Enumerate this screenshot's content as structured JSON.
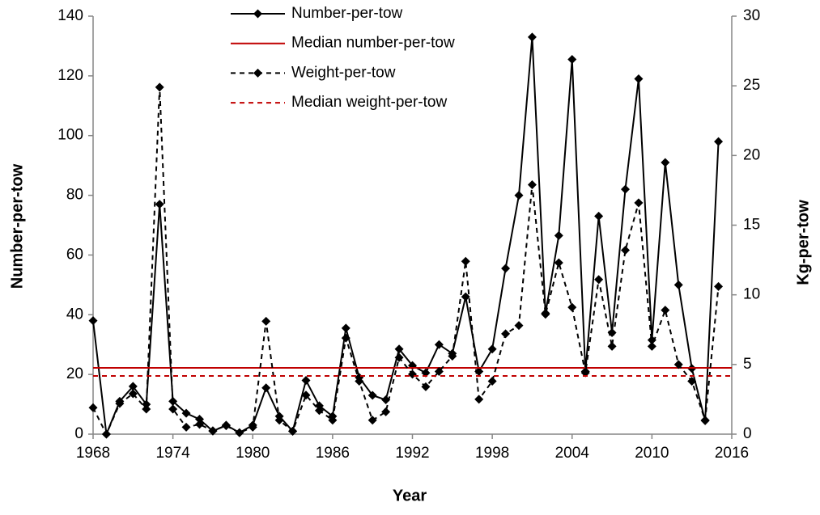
{
  "chart_data": {
    "type": "line",
    "x_label": "Year",
    "y_label": "Number-per-tow",
    "y2_label": "Kg-per-tow",
    "x": [
      1968,
      1969,
      1970,
      1971,
      1972,
      1973,
      1974,
      1975,
      1976,
      1977,
      1978,
      1979,
      1980,
      1981,
      1982,
      1983,
      1984,
      1985,
      1986,
      1987,
      1988,
      1989,
      1990,
      1991,
      1992,
      1993,
      1994,
      1995,
      1996,
      1997,
      1998,
      1999,
      2000,
      2001,
      2002,
      2003,
      2004,
      2005,
      2006,
      2007,
      2008,
      2009,
      2010,
      2011,
      2012,
      2013,
      2014,
      2015
    ],
    "xlim": [
      1968,
      2016
    ],
    "xticks": [
      1968,
      1974,
      1980,
      1986,
      1992,
      1998,
      2004,
      2010,
      2016
    ],
    "ylim": [
      0,
      140
    ],
    "yticks": [
      0,
      20,
      40,
      60,
      80,
      100,
      120,
      140
    ],
    "y2lim": [
      0,
      30
    ],
    "y2ticks": [
      0,
      5,
      10,
      15,
      20,
      25,
      30
    ],
    "series": [
      {
        "name": "Number-per-tow",
        "color": "#000000",
        "dashed": false,
        "marker": "diamond",
        "values": [
          38,
          0,
          11,
          16,
          10,
          77,
          11,
          7,
          5,
          1,
          3,
          0.5,
          3,
          15.5,
          6,
          1,
          18,
          9.5,
          6,
          35.5,
          19,
          13,
          11.5,
          28.5,
          23,
          20.5,
          30,
          27,
          46,
          21,
          28.5,
          55.5,
          80,
          133,
          40.5,
          66.5,
          125.5,
          21,
          73,
          34,
          82,
          119,
          31.5,
          91,
          50,
          22,
          4.5,
          98
        ]
      },
      {
        "name": "Median number-per-tow",
        "color": "#c00000",
        "dashed": false,
        "median": 22.2
      },
      {
        "name": "Weight-per-tow",
        "color": "#000000",
        "dashed": true,
        "marker": "diamond",
        "axis": "y2",
        "values": [
          1.9,
          0,
          2.2,
          2.9,
          1.8,
          24.9,
          1.8,
          0.5,
          0.7,
          0.25,
          0.6,
          0.1,
          0.5,
          8.1,
          1.0,
          0.2,
          2.8,
          1.7,
          1.0,
          6.9,
          3.8,
          1.0,
          1.6,
          5.5,
          4.3,
          3.4,
          4.5,
          5.6,
          12.4,
          2.5,
          3.8,
          7.2,
          7.8,
          17.9,
          8.6,
          12.3,
          9.1,
          4.4,
          11.1,
          6.3,
          13.2,
          16.6,
          6.3,
          8.9,
          5.0,
          3.8,
          1.0,
          10.6
        ]
      },
      {
        "name": "Median weight-per-tow",
        "color": "#c00000",
        "dashed": true,
        "axis": "y2",
        "median": 4.18
      }
    ]
  }
}
